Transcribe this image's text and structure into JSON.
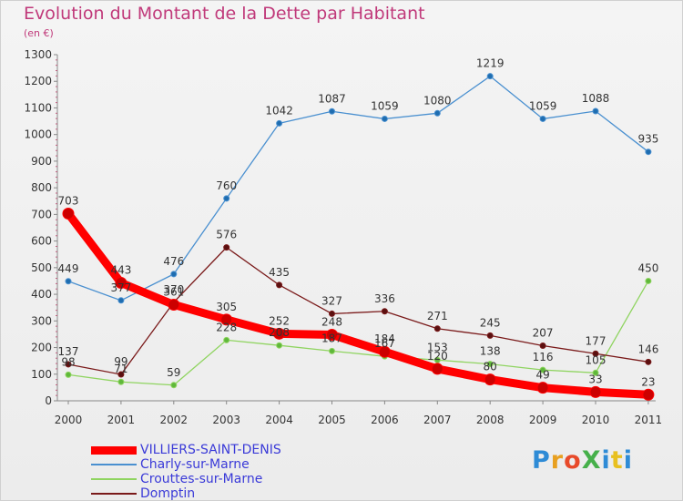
{
  "title": "Evolution du Montant de la Dette par Habitant",
  "subtitle": "(en €)",
  "logo": {
    "text": "ProXiti",
    "colors": [
      "#2e8bd6",
      "#e8a020",
      "#e84a2a",
      "#46b04a",
      "#2e8bd6",
      "#e8c020",
      "#2e8bd6"
    ]
  },
  "chart_data": {
    "type": "line",
    "categories": [
      "2000",
      "2001",
      "2002",
      "2003",
      "2004",
      "2005",
      "2006",
      "2007",
      "2008",
      "2009",
      "2010",
      "2011"
    ],
    "ylim": [
      0,
      1300
    ],
    "yticks": [
      0,
      100,
      200,
      300,
      400,
      500,
      600,
      700,
      800,
      900,
      1000,
      1100,
      1200,
      1300
    ],
    "grid": false,
    "legend_position": "bottom-left",
    "series": [
      {
        "name": "VILLIERS-SAINT-DENIS",
        "color": "#ff0000",
        "values": [
          703,
          443,
          361,
          305,
          252,
          248,
          184,
          120,
          80,
          49,
          33,
          23
        ],
        "labels": [
          "703",
          "443",
          "361",
          "305",
          "252",
          "248",
          "184",
          "120",
          "80",
          "49",
          "33",
          "23"
        ]
      },
      {
        "name": "Charly-sur-Marne",
        "color": "#4a90d0",
        "values": [
          449,
          377,
          476,
          760,
          1042,
          1087,
          1059,
          1080,
          1219,
          1059,
          1088,
          935
        ],
        "labels": [
          "449",
          "377",
          "476",
          "760",
          "1042",
          "1087",
          "1059",
          "1080",
          "1219",
          "1059",
          "1088",
          "935"
        ]
      },
      {
        "name": "Crouttes-sur-Marne",
        "color": "#8fd460",
        "values": [
          98,
          71,
          59,
          228,
          208,
          187,
          167,
          153,
          138,
          116,
          105,
          450
        ],
        "labels": [
          "98",
          "71",
          "59",
          "228",
          "208",
          "187",
          "167",
          "153",
          "138",
          "116",
          "105",
          "450"
        ]
      },
      {
        "name": "Domptin",
        "color": "#7a1a1a",
        "values": [
          137,
          99,
          370,
          576,
          435,
          327,
          336,
          271,
          245,
          207,
          177,
          146
        ],
        "labels": [
          "137",
          "99",
          "370",
          "576",
          "435",
          "327",
          "336",
          "271",
          "245",
          "207",
          "177",
          "146"
        ]
      }
    ]
  }
}
